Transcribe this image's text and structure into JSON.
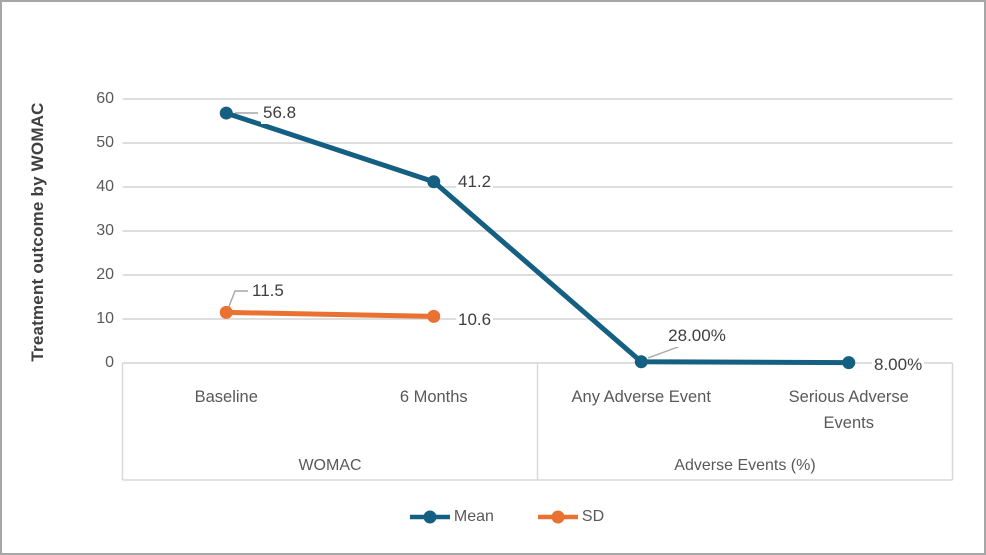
{
  "chart_data": {
    "type": "line",
    "title": "",
    "xlabel": "",
    "ylabel": "Treatment outcome by WOMAC",
    "ylim": [
      0,
      60
    ],
    "yticks": [
      0,
      10,
      20,
      30,
      40,
      50,
      60
    ],
    "grid": true,
    "legend_position": "bottom",
    "categories": [
      "Baseline",
      "6 Months",
      "Any Adverse Event",
      "Serious Adverse Events"
    ],
    "category_groups": [
      {
        "label": "WOMAC",
        "span": [
          0,
          1
        ]
      },
      {
        "label": "Adverse Events (%)",
        "span": [
          2,
          3
        ]
      }
    ],
    "series": [
      {
        "name": "Mean",
        "color": "#156082",
        "values": [
          56.8,
          41.2,
          0.28,
          0.08
        ],
        "labels": [
          "56.8",
          "41.2",
          "28.00%",
          "8.00%"
        ]
      },
      {
        "name": "SD",
        "color": "#E97132",
        "values": [
          11.5,
          10.6,
          null,
          null
        ],
        "labels": [
          "11.5",
          "10.6",
          null,
          null
        ]
      }
    ],
    "colors": {
      "grid": "#D9D9D9",
      "frame": "#D9D9D9",
      "leader": "#A6A6A6",
      "tick_text": "#595959",
      "data_label_text": "#3F3F3F",
      "axis_title_text": "#404040",
      "legend_text": "#595959",
      "background": "#FFFFFF",
      "figure_border": "#A6A6A6"
    }
  }
}
